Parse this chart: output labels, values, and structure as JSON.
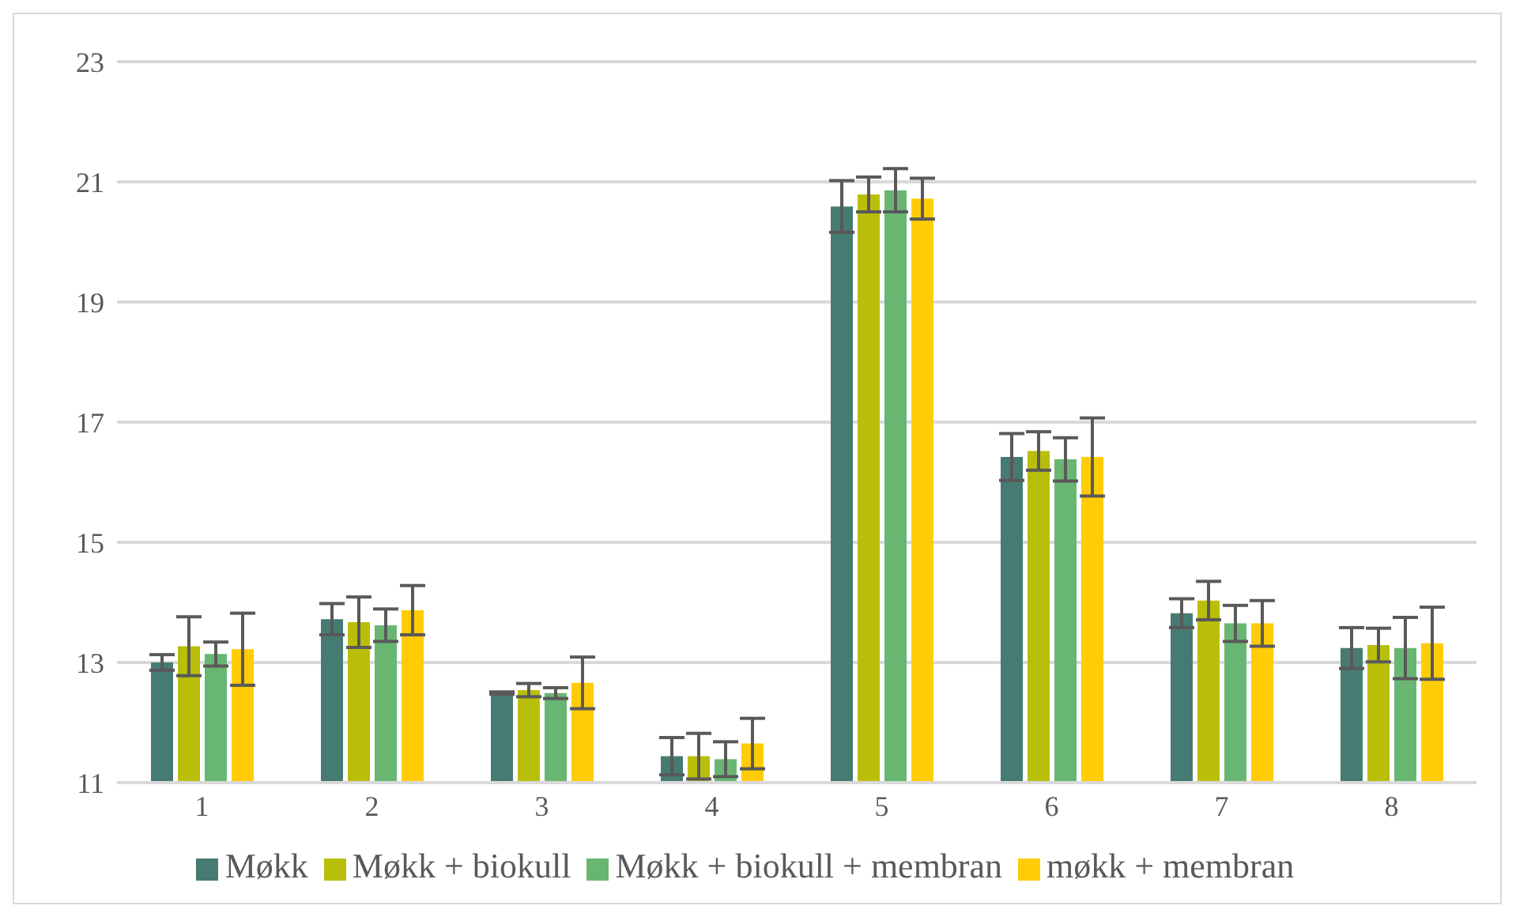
{
  "chart_data": {
    "type": "bar",
    "categories": [
      "1",
      "2",
      "3",
      "4",
      "5",
      "6",
      "7",
      "8"
    ],
    "series": [
      {
        "name": "Møkk",
        "color": "#467b73",
        "values": [
          13.0,
          13.72,
          12.49,
          11.44,
          20.59,
          16.42,
          13.82,
          13.24
        ],
        "errors": [
          0.13,
          0.26,
          0.02,
          0.31,
          0.43,
          0.39,
          0.24,
          0.34
        ]
      },
      {
        "name": "Møkk + biokull",
        "color": "#b9bf09",
        "values": [
          13.27,
          13.67,
          12.54,
          11.44,
          20.79,
          16.52,
          14.03,
          13.29
        ],
        "errors": [
          0.49,
          0.42,
          0.11,
          0.38,
          0.29,
          0.32,
          0.32,
          0.28
        ]
      },
      {
        "name": "Møkk + biokull + membran",
        "color": "#69b673",
        "values": [
          13.14,
          13.62,
          12.49,
          11.39,
          20.86,
          16.38,
          13.65,
          13.24
        ],
        "errors": [
          0.2,
          0.27,
          0.09,
          0.29,
          0.36,
          0.36,
          0.3,
          0.51
        ]
      },
      {
        "name": "møkk + membran",
        "color": "#ffcc05",
        "values": [
          13.22,
          13.87,
          12.66,
          11.65,
          20.72,
          16.42,
          13.65,
          13.32
        ],
        "errors": [
          0.6,
          0.41,
          0.43,
          0.42,
          0.34,
          0.65,
          0.38,
          0.6
        ]
      }
    ],
    "ylim": [
      11,
      23
    ],
    "yticks": [
      11,
      13,
      15,
      17,
      19,
      21,
      23
    ],
    "grid": "y",
    "legend": "bottom"
  }
}
